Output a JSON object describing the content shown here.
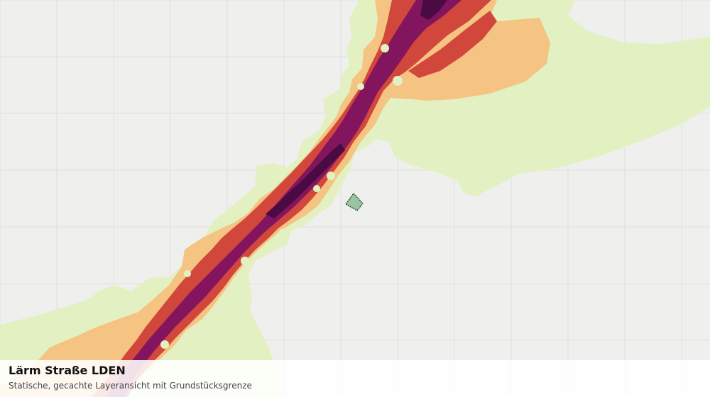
{
  "map": {
    "layer_title": "Lärm Straße LDEN",
    "layer_subtitle": "Statische, gecachte Layeransicht mit Grundstücksgrenze"
  },
  "colors": {
    "background": "#eff0ee",
    "grid": "#dcdfdc",
    "noise_level_1": "#e3f1c2",
    "noise_level_2": "#f5c482",
    "noise_level_3": "#d2473c",
    "noise_level_4": "#83145e",
    "noise_level_5": "#4a0a44",
    "parcel_fill": "#9cc3a3",
    "parcel_outline": "#1e4a2c"
  }
}
